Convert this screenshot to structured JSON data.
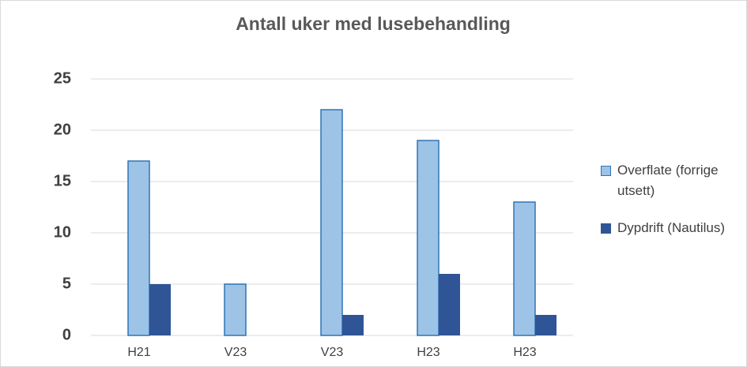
{
  "chart_data": {
    "type": "bar",
    "title": "Antall uker med lusebehandling",
    "categories": [
      "H21",
      "V23",
      "V23",
      "H23",
      "H23"
    ],
    "series": [
      {
        "name": "Overflate (forrige utsett)",
        "color": "#9dc3e6",
        "values": [
          17,
          5,
          22,
          19,
          13
        ]
      },
      {
        "name": "Dypdrift (Nautilus)",
        "color": "#2f5597",
        "values": [
          5,
          0,
          2,
          6,
          2
        ]
      }
    ],
    "ylim": [
      0,
      25
    ],
    "yticks": [
      0,
      5,
      10,
      15,
      20,
      25
    ],
    "grid": true,
    "legend": "right"
  }
}
